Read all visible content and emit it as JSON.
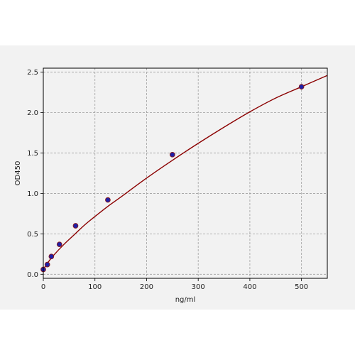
{
  "chart_data": {
    "type": "scatter",
    "title": "",
    "xlabel": "ng/ml",
    "ylabel": "OD450",
    "xlim": [
      0,
      550
    ],
    "ylim": [
      -0.05,
      2.55
    ],
    "xticks": [
      0,
      100,
      200,
      300,
      400,
      500
    ],
    "yticks": [
      0.0,
      0.5,
      1.0,
      1.5,
      2.0,
      2.5
    ],
    "xtick_labels": [
      "0",
      "100",
      "200",
      "300",
      "400",
      "500"
    ],
    "ytick_labels": [
      "0.0",
      "0.5",
      "1.0",
      "1.5",
      "2.0",
      "2.5"
    ],
    "grid": true,
    "legend": "none",
    "series": [
      {
        "kind": "points",
        "color": "#1f1fa8",
        "edge_color": "#8b1a1a",
        "x": [
          0,
          7.8,
          15.6,
          31.25,
          62.5,
          125,
          250,
          500
        ],
        "y": [
          0.06,
          0.12,
          0.22,
          0.37,
          0.6,
          0.92,
          1.48,
          2.32
        ]
      },
      {
        "kind": "fit_curve",
        "color": "#8b0000",
        "x": [
          0,
          5,
          10,
          20,
          40,
          60,
          80,
          100,
          125,
          150,
          200,
          250,
          300,
          350,
          400,
          450,
          500,
          550
        ],
        "y": [
          0.055,
          0.11,
          0.155,
          0.235,
          0.37,
          0.49,
          0.61,
          0.715,
          0.84,
          0.955,
          1.19,
          1.41,
          1.62,
          1.82,
          2.01,
          2.18,
          2.32,
          2.46
        ]
      }
    ]
  },
  "colors": {
    "background": "#f2f2f2",
    "grid": "#a0a0a0",
    "axes": "#000000"
  }
}
